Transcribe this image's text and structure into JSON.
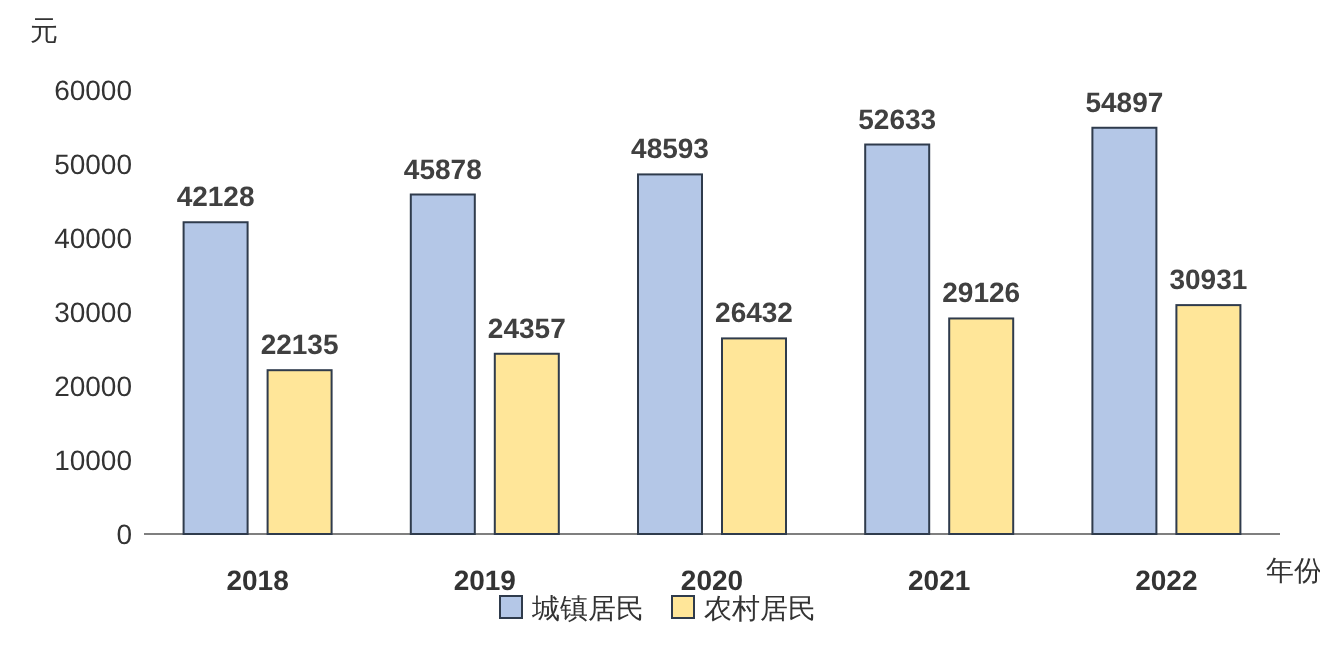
{
  "chart_data": {
    "type": "bar",
    "ylabel": "元",
    "xlabel": "年份",
    "categories": [
      "2018",
      "2019",
      "2020",
      "2021",
      "2022"
    ],
    "series": [
      {
        "name": "城镇居民",
        "color": "#b4c7e7",
        "values": [
          42128,
          45878,
          48593,
          52633,
          54897
        ]
      },
      {
        "name": "农村居民",
        "color": "#ffe699",
        "values": [
          22135,
          24357,
          26432,
          29126,
          30931
        ]
      }
    ],
    "ylim": [
      0,
      60000
    ],
    "yticks": [
      0,
      10000,
      20000,
      30000,
      40000,
      50000,
      60000
    ],
    "data_labels": true,
    "legend": "bottom",
    "grid": false
  }
}
